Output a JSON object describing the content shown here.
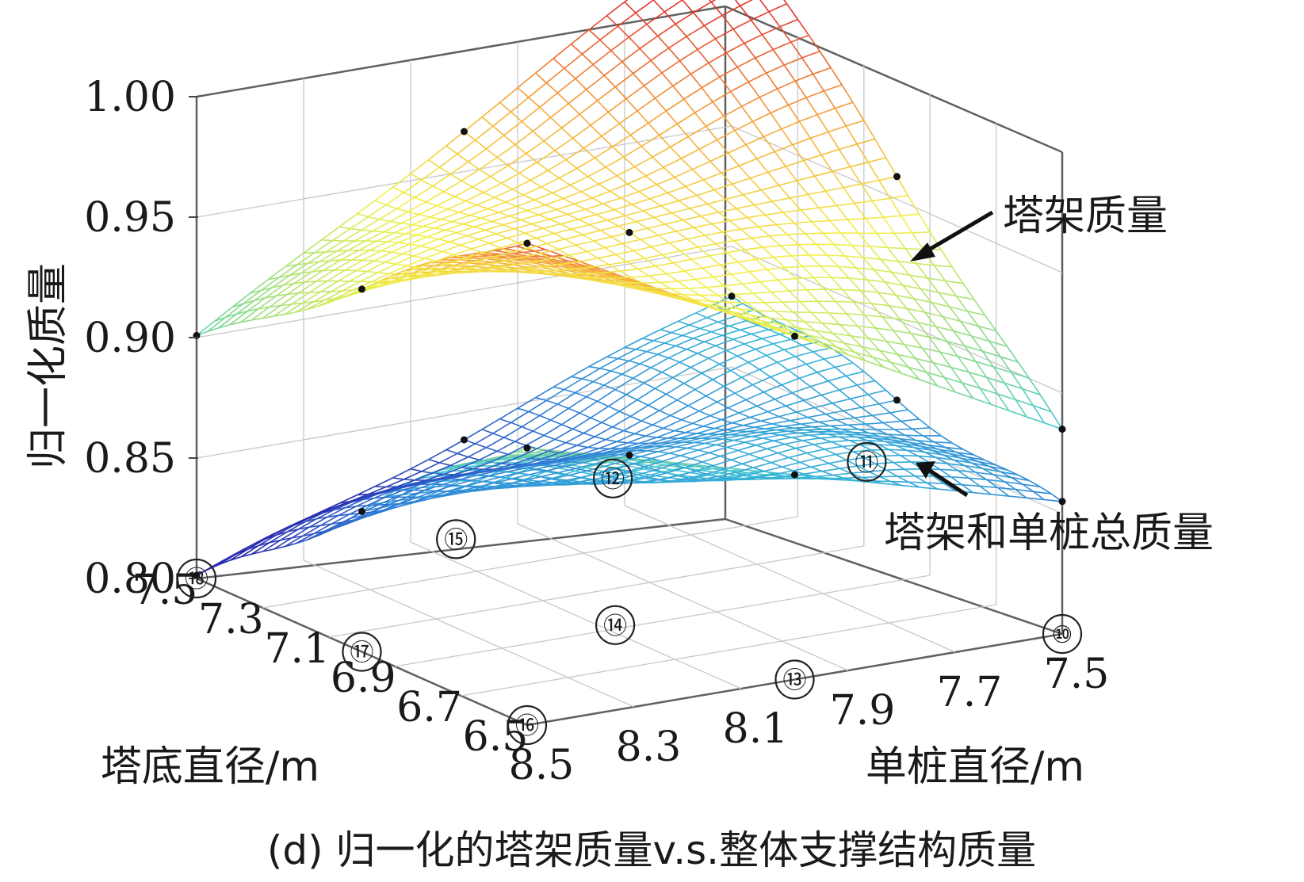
{
  "chart_data": {
    "type": "surface3d",
    "caption": "(d) 归一化的塔架质量v.s.整体支撑结构质量",
    "zlabel": "归一化质量",
    "xlabel": "单桩直径/m",
    "ylabel": "塔底直径/m",
    "zlim": [
      0.8,
      1.0
    ],
    "z_ticks": [
      "1.00",
      "0.95",
      "0.90",
      "0.85",
      "0.80"
    ],
    "x_ticks": [
      "8.5",
      "8.3",
      "8.1",
      "7.9",
      "7.7",
      "7.5"
    ],
    "y_ticks": [
      "7.5",
      "7.3",
      "7.1",
      "6.9",
      "6.7",
      "6.5"
    ],
    "grid": true,
    "colormap": [
      "#2b2bb0",
      "#2f7fd8",
      "#39c4d6",
      "#8fdc8a",
      "#f2f04a",
      "#f5a53a",
      "#e0322c"
    ],
    "series": [
      {
        "name": "塔架质量",
        "corners": {
          "x8.5_y6.5": 1.0,
          "x7.5_y6.5": 0.885,
          "x8.5_y7.5": 0.9,
          "x7.5_y7.5": 1.035
        }
      },
      {
        "name": "塔架和单桩总质量",
        "corners": {
          "x8.5_y6.5": 0.915,
          "x7.5_y6.5": 0.855,
          "x8.5_y7.5": 0.8,
          "x7.5_y7.5": 0.88
        }
      }
    ],
    "markers": [
      "⑩",
      "⑪",
      "⑫",
      "⑬",
      "⑭",
      "⑮",
      "⑯",
      "⑰",
      "⑱"
    ]
  }
}
